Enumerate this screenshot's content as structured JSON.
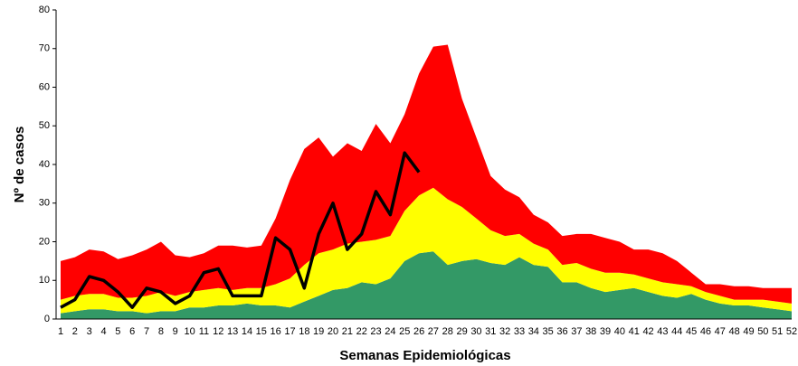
{
  "chart_data": {
    "type": "area",
    "stacked": true,
    "x_label": "Semanas Epidemiológicas",
    "y_label": "Nº de casos",
    "categories": [
      1,
      2,
      3,
      4,
      5,
      6,
      7,
      8,
      9,
      10,
      11,
      12,
      13,
      14,
      15,
      16,
      17,
      18,
      19,
      20,
      21,
      22,
      23,
      24,
      25,
      26,
      27,
      28,
      29,
      30,
      31,
      32,
      33,
      34,
      35,
      36,
      37,
      38,
      39,
      40,
      41,
      42,
      43,
      44,
      45,
      46,
      47,
      48,
      49,
      50,
      51,
      52
    ],
    "ylim": [
      0,
      80
    ],
    "yticks": [
      0,
      10,
      20,
      30,
      40,
      50,
      60,
      70,
      80
    ],
    "series": [
      {
        "kind": "area",
        "color": "#339966",
        "values": [
          1.5,
          2,
          2.5,
          2.5,
          2,
          2,
          1.5,
          2,
          2,
          3,
          3,
          3.5,
          3.5,
          4,
          3.5,
          3.5,
          3,
          4.5,
          6,
          7.5,
          8,
          9.5,
          9,
          10.5,
          15,
          17,
          17.5,
          14,
          15,
          15.5,
          14.5,
          14,
          16,
          14,
          13.5,
          9.5,
          9.5,
          8,
          7,
          7.5,
          8,
          7,
          6,
          5.5,
          6.5,
          5,
          4,
          3.5,
          3.5,
          3,
          2.5,
          2
        ]
      },
      {
        "kind": "area",
        "color": "#ffff00",
        "values": [
          3.5,
          4,
          4,
          4,
          3.5,
          3.5,
          4.5,
          5,
          4,
          4,
          4.5,
          4.5,
          4,
          4,
          4.5,
          5.5,
          7.5,
          9.5,
          11,
          10.5,
          11.5,
          10.5,
          11.5,
          11,
          13,
          15,
          16.5,
          17,
          14,
          10.5,
          8.5,
          7.5,
          6,
          5.5,
          4.5,
          4.5,
          5,
          5,
          5,
          4.5,
          3.5,
          3.5,
          3.5,
          3.5,
          2,
          2,
          2,
          1.5,
          1.5,
          2,
          2,
          2
        ]
      },
      {
        "kind": "area",
        "color": "#ff0000",
        "values": [
          10,
          10,
          11.5,
          11,
          10,
          11,
          12,
          13,
          10.5,
          9,
          9.5,
          11,
          11.5,
          10.5,
          11,
          17,
          25.5,
          30,
          30,
          24,
          26,
          23.5,
          30,
          24,
          25,
          31.5,
          36.5,
          40,
          28,
          21,
          14,
          12,
          9.5,
          7.5,
          7,
          7.5,
          7.5,
          9,
          9,
          8,
          6.5,
          7.5,
          7.5,
          6,
          3.5,
          2,
          3,
          3.5,
          3.5,
          3,
          3.5,
          4
        ]
      },
      {
        "kind": "line",
        "color": "#000000",
        "values": [
          3,
          5,
          11,
          10,
          7,
          3,
          8,
          7,
          4,
          6,
          12,
          13,
          6,
          6,
          6,
          21,
          18,
          8,
          22,
          30,
          18,
          22,
          33,
          27,
          43,
          38,
          null,
          null,
          null,
          null,
          null,
          null,
          null,
          null,
          null,
          null,
          null,
          null,
          null,
          null,
          null,
          null,
          null,
          null,
          null,
          null,
          null,
          null,
          null,
          null,
          null,
          null
        ]
      }
    ]
  }
}
